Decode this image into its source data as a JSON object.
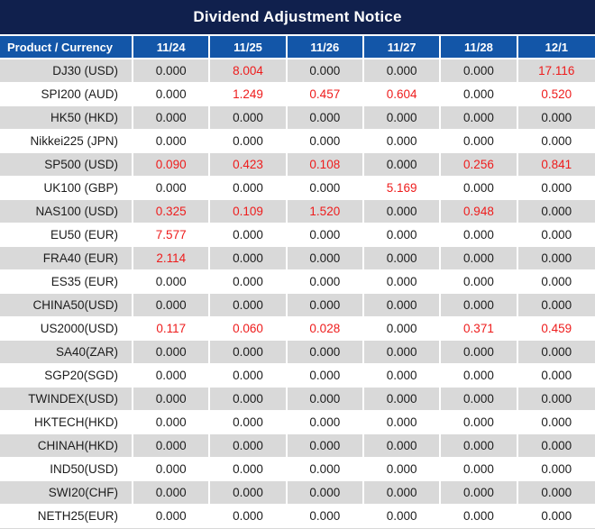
{
  "title": "Dividend Adjustment Notice",
  "colors": {
    "title_bar_bg": "#10204d",
    "header_bg": "#1356a8",
    "stripe_gray": "#d9d9d9",
    "row_white": "#ffffff",
    "value_text": "#1c1c1c",
    "nonzero_red": "#ee1c1c",
    "header_text": "#ffffff"
  },
  "table": {
    "product_header": "Product / Currency",
    "date_headers": [
      "11/24",
      "11/25",
      "11/26",
      "11/27",
      "11/28",
      "12/1"
    ],
    "rows": [
      {
        "product": "DJ30 (USD)",
        "values": [
          "0.000",
          "8.004",
          "0.000",
          "0.000",
          "0.000",
          "17.116"
        ]
      },
      {
        "product": "SPI200 (AUD)",
        "values": [
          "0.000",
          "1.249",
          "0.457",
          "0.604",
          "0.000",
          "0.520"
        ]
      },
      {
        "product": "HK50 (HKD)",
        "values": [
          "0.000",
          "0.000",
          "0.000",
          "0.000",
          "0.000",
          "0.000"
        ]
      },
      {
        "product": "Nikkei225 (JPN)",
        "values": [
          "0.000",
          "0.000",
          "0.000",
          "0.000",
          "0.000",
          "0.000"
        ]
      },
      {
        "product": "SP500 (USD)",
        "values": [
          "0.090",
          "0.423",
          "0.108",
          "0.000",
          "0.256",
          "0.841"
        ]
      },
      {
        "product": "UK100 (GBP)",
        "values": [
          "0.000",
          "0.000",
          "0.000",
          "5.169",
          "0.000",
          "0.000"
        ]
      },
      {
        "product": "NAS100 (USD)",
        "values": [
          "0.325",
          "0.109",
          "1.520",
          "0.000",
          "0.948",
          "0.000"
        ]
      },
      {
        "product": "EU50 (EUR)",
        "values": [
          "7.577",
          "0.000",
          "0.000",
          "0.000",
          "0.000",
          "0.000"
        ]
      },
      {
        "product": "FRA40 (EUR)",
        "values": [
          "2.114",
          "0.000",
          "0.000",
          "0.000",
          "0.000",
          "0.000"
        ]
      },
      {
        "product": "ES35 (EUR)",
        "values": [
          "0.000",
          "0.000",
          "0.000",
          "0.000",
          "0.000",
          "0.000"
        ]
      },
      {
        "product": "CHINA50(USD)",
        "values": [
          "0.000",
          "0.000",
          "0.000",
          "0.000",
          "0.000",
          "0.000"
        ]
      },
      {
        "product": "US2000(USD)",
        "values": [
          "0.117",
          "0.060",
          "0.028",
          "0.000",
          "0.371",
          "0.459"
        ]
      },
      {
        "product": "SA40(ZAR)",
        "values": [
          "0.000",
          "0.000",
          "0.000",
          "0.000",
          "0.000",
          "0.000"
        ]
      },
      {
        "product": "SGP20(SGD)",
        "values": [
          "0.000",
          "0.000",
          "0.000",
          "0.000",
          "0.000",
          "0.000"
        ]
      },
      {
        "product": "TWINDEX(USD)",
        "values": [
          "0.000",
          "0.000",
          "0.000",
          "0.000",
          "0.000",
          "0.000"
        ]
      },
      {
        "product": "HKTECH(HKD)",
        "values": [
          "0.000",
          "0.000",
          "0.000",
          "0.000",
          "0.000",
          "0.000"
        ]
      },
      {
        "product": "CHINAH(HKD)",
        "values": [
          "0.000",
          "0.000",
          "0.000",
          "0.000",
          "0.000",
          "0.000"
        ]
      },
      {
        "product": "IND50(USD)",
        "values": [
          "0.000",
          "0.000",
          "0.000",
          "0.000",
          "0.000",
          "0.000"
        ]
      },
      {
        "product": "SWI20(CHF)",
        "values": [
          "0.000",
          "0.000",
          "0.000",
          "0.000",
          "0.000",
          "0.000"
        ]
      },
      {
        "product": "NETH25(EUR)",
        "values": [
          "0.000",
          "0.000",
          "0.000",
          "0.000",
          "0.000",
          "0.000"
        ]
      }
    ]
  }
}
